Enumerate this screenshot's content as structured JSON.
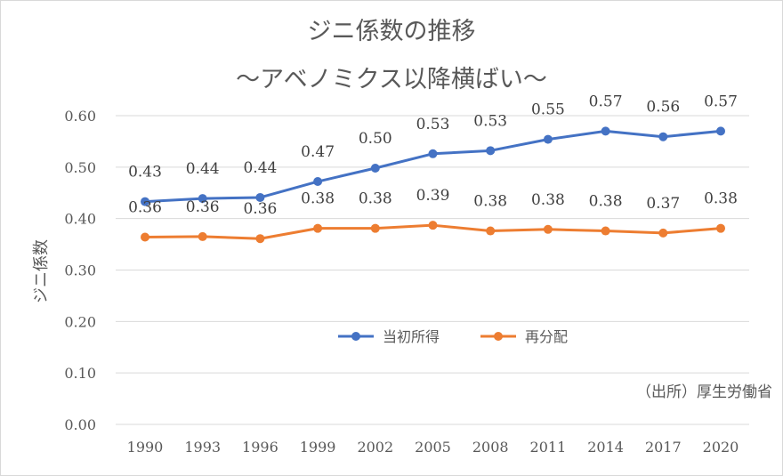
{
  "chart_data": {
    "type": "line",
    "title": "ジニ係数の推移",
    "subtitle": "～アベノミクス以降横ばい～",
    "xlabel": "",
    "ylabel": "ジニ係数",
    "ylim": [
      0,
      0.6
    ],
    "yticks": [
      "0.00",
      "0.10",
      "0.20",
      "0.30",
      "0.40",
      "0.50",
      "0.60"
    ],
    "categories": [
      "1990",
      "1993",
      "1996",
      "1999",
      "2002",
      "2005",
      "2008",
      "2011",
      "2014",
      "2017",
      "2020"
    ],
    "grid": true,
    "legend_position": "center",
    "source_note": "（出所）厚生労働省",
    "series": [
      {
        "name": "当初所得",
        "color": "#4472C4",
        "values": [
          0.433,
          0.439,
          0.441,
          0.472,
          0.498,
          0.526,
          0.532,
          0.554,
          0.57,
          0.559,
          0.57
        ],
        "labels": [
          "0.43",
          "0.44",
          "0.44",
          "0.47",
          "0.50",
          "0.53",
          "0.53",
          "0.55",
          "0.57",
          "0.56",
          "0.57"
        ]
      },
      {
        "name": "再分配",
        "color": "#ED7D31",
        "values": [
          0.364,
          0.365,
          0.361,
          0.381,
          0.381,
          0.387,
          0.376,
          0.379,
          0.376,
          0.372,
          0.381
        ],
        "labels": [
          "0.36",
          "0.36",
          "0.36",
          "0.38",
          "0.38",
          "0.39",
          "0.38",
          "0.38",
          "0.38",
          "0.37",
          "0.38"
        ]
      }
    ]
  }
}
